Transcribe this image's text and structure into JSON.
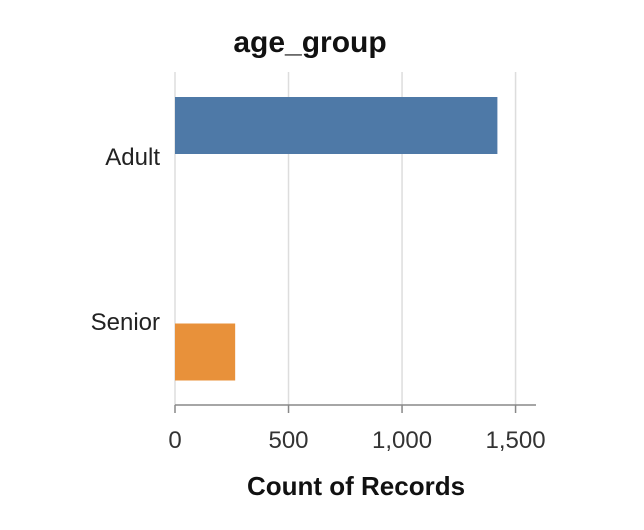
{
  "chart_data": {
    "type": "bar",
    "orientation": "horizontal",
    "title": "age_group",
    "xlabel": "Count of Records",
    "ylabel": "",
    "categories": [
      "Adult",
      "Senior"
    ],
    "values": [
      1420,
      265
    ],
    "colors": [
      "#4e79a7",
      "#e8913a"
    ],
    "xlim": [
      0,
      1590
    ],
    "xticks": [
      0,
      500,
      1000,
      1500
    ],
    "xtick_labels": [
      "0",
      "500",
      "1,000",
      "1,500"
    ],
    "grid": true
  }
}
